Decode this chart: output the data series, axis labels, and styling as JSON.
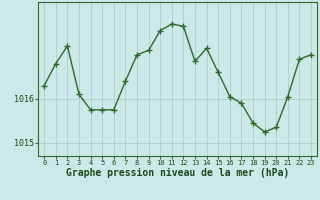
{
  "x": [
    0,
    1,
    2,
    3,
    4,
    5,
    6,
    7,
    8,
    9,
    10,
    11,
    12,
    13,
    14,
    15,
    16,
    17,
    18,
    19,
    20,
    21,
    22,
    23
  ],
  "y": [
    1016.3,
    1016.8,
    1017.2,
    1016.1,
    1015.75,
    1015.75,
    1015.75,
    1016.4,
    1017.0,
    1017.1,
    1017.55,
    1017.7,
    1017.65,
    1016.85,
    1017.15,
    1016.6,
    1016.05,
    1015.9,
    1015.45,
    1015.25,
    1015.35,
    1016.05,
    1016.9,
    1017.0
  ],
  "line_color": "#2d6a2d",
  "marker": "+",
  "bg_color": "#cce8e8",
  "grid_color": "#aacece",
  "xlabel": "Graphe pression niveau de la mer (hPa)",
  "yticks": [
    1015,
    1016
  ],
  "xlim": [
    -0.5,
    23.5
  ],
  "ylim": [
    1014.7,
    1018.2
  ],
  "axis_color": "#2d6a2d",
  "tick_label_color": "#1a4a1a",
  "xlabel_color": "#1a4a1a",
  "xlabel_fontsize": 7.0,
  "linewidth": 1.0,
  "markersize": 4,
  "markeredgewidth": 1.0
}
